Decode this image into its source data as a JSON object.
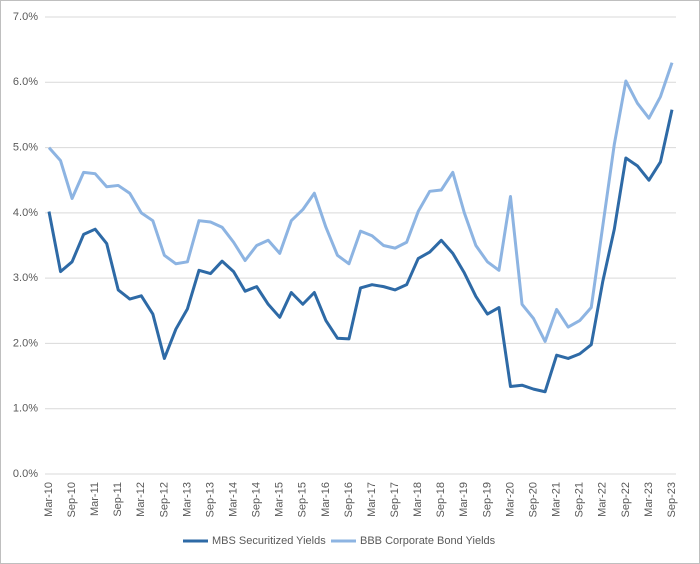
{
  "chart_data": {
    "type": "line",
    "categories": [
      "Mar-10",
      null,
      "Sep-10",
      null,
      "Mar-11",
      null,
      "Sep-11",
      null,
      "Mar-12",
      null,
      "Sep-12",
      null,
      "Mar-13",
      null,
      "Sep-13",
      null,
      "Mar-14",
      null,
      "Sep-14",
      null,
      "Mar-15",
      null,
      "Sep-15",
      null,
      "Mar-16",
      null,
      "Sep-16",
      null,
      "Mar-17",
      null,
      "Sep-17",
      null,
      "Mar-18",
      null,
      "Sep-18",
      null,
      "Mar-19",
      null,
      "Sep-19",
      null,
      "Mar-20",
      null,
      "Sep-20",
      null,
      "Mar-21",
      null,
      "Sep-21",
      null,
      "Mar-22",
      null,
      "Sep-22",
      null,
      "Mar-23",
      null,
      "Sep-23"
    ],
    "series": [
      {
        "name": "MBS Securitized Yields",
        "color": "#2e6aa6",
        "values": [
          4.02,
          3.1,
          3.25,
          3.67,
          3.75,
          3.53,
          2.82,
          2.68,
          2.73,
          2.45,
          1.77,
          2.22,
          2.53,
          3.12,
          3.07,
          3.26,
          3.1,
          2.8,
          2.87,
          2.6,
          2.4,
          2.78,
          2.6,
          2.78,
          2.35,
          2.08,
          2.07,
          2.85,
          2.9,
          2.87,
          2.82,
          2.9,
          3.3,
          3.4,
          3.58,
          3.38,
          3.08,
          2.72,
          2.45,
          2.55,
          1.34,
          1.36,
          1.3,
          1.26,
          1.82,
          1.77,
          1.84,
          1.98,
          2.95,
          3.75,
          4.84,
          4.72,
          4.5,
          4.78,
          5.58
        ]
      },
      {
        "name": "BBB Corporate Bond Yields",
        "color": "#8db4e2",
        "values": [
          5.0,
          4.8,
          4.22,
          4.62,
          4.6,
          4.4,
          4.42,
          4.3,
          4.0,
          3.88,
          3.35,
          3.22,
          3.25,
          3.88,
          3.86,
          3.78,
          3.55,
          3.27,
          3.5,
          3.58,
          3.38,
          3.88,
          4.05,
          4.3,
          3.78,
          3.35,
          3.22,
          3.72,
          3.65,
          3.5,
          3.46,
          3.55,
          4.02,
          4.33,
          4.35,
          4.62,
          4.0,
          3.5,
          3.25,
          3.12,
          4.25,
          2.6,
          2.38,
          2.03,
          2.52,
          2.25,
          2.35,
          2.55,
          3.8,
          5.05,
          6.02,
          5.68,
          5.45,
          5.78,
          6.3
        ]
      }
    ],
    "ylim": [
      0,
      7
    ],
    "yticks": [
      {
        "value": 0,
        "label": "0.0%"
      },
      {
        "value": 1,
        "label": "1.0%"
      },
      {
        "value": 2,
        "label": "2.0%"
      },
      {
        "value": 3,
        "label": "3.0%"
      },
      {
        "value": 4,
        "label": "4.0%"
      },
      {
        "value": 5,
        "label": "5.0%"
      },
      {
        "value": 6,
        "label": "6.0%"
      },
      {
        "value": 7,
        "label": "7.0%"
      }
    ],
    "grid": true,
    "legend": "bottom"
  }
}
